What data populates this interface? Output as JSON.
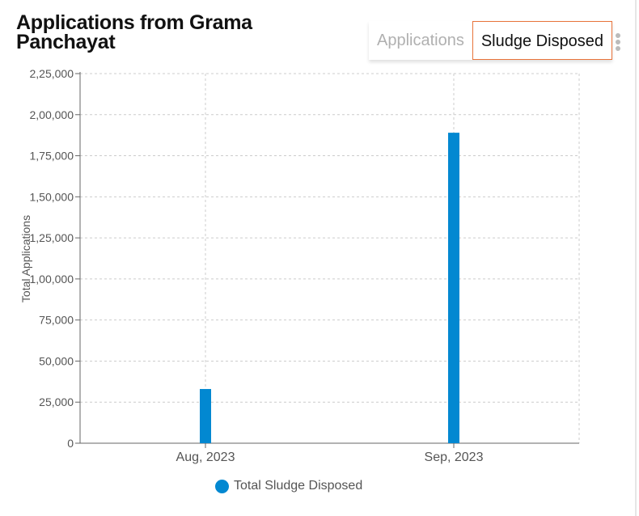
{
  "header": {
    "title": "Applications from Grama Panchayat"
  },
  "tabs": [
    {
      "label": "Applications",
      "active": false
    },
    {
      "label": "Sludge Disposed",
      "active": true
    }
  ],
  "menu_icon": "kebab-vertical-icon",
  "colors": {
    "bar": "#0288d1",
    "active_tab_border": "#e8733a"
  },
  "chart_data": {
    "type": "bar",
    "title": "",
    "xlabel": "",
    "ylabel": "Total Applications",
    "categories": [
      "Aug, 2023",
      "Sep, 2023"
    ],
    "series": [
      {
        "name": "Total Sludge Disposed",
        "values": [
          33000,
          189000
        ]
      }
    ],
    "ylim": [
      0,
      225000
    ],
    "yticks": [
      0,
      25000,
      50000,
      75000,
      100000,
      125000,
      150000,
      175000,
      200000,
      225000
    ],
    "ytick_labels": [
      "0",
      "25,000",
      "50,000",
      "75,000",
      "1,00,000",
      "1,25,000",
      "1,50,000",
      "1,75,000",
      "2,00,000",
      "2,25,000"
    ],
    "grid": true,
    "legend": "bottom"
  }
}
